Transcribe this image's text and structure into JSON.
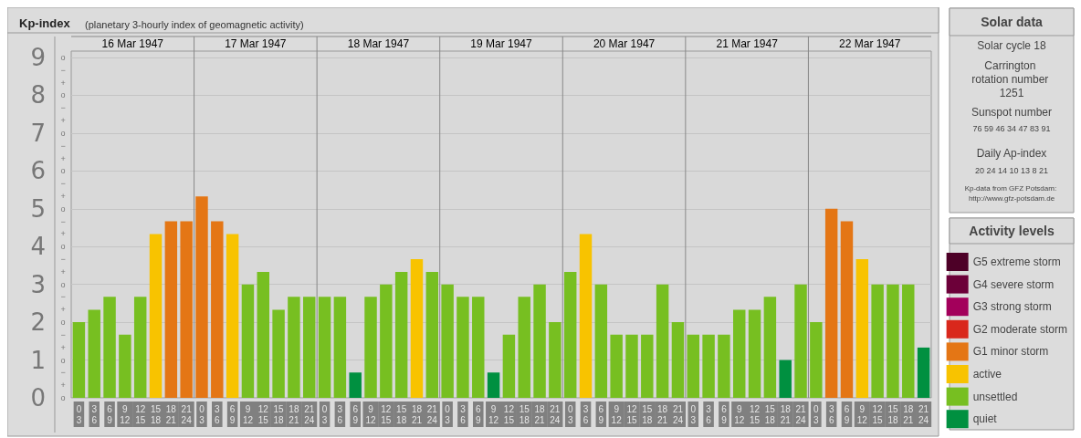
{
  "chart_data": {
    "type": "bar",
    "title": "Kp-index",
    "subtitle": "(planetary 3-hourly index of geomagnetic activity)",
    "categories": [
      "0\n3",
      "3\n6",
      "6\n9",
      "9\n12",
      "12\n15",
      "15\n18",
      "18\n21",
      "21\n24",
      "0\n3",
      "3\n6",
      "6\n9",
      "9\n12",
      "12\n15",
      "15\n18",
      "18\n21",
      "21\n24",
      "0\n3",
      "3\n6",
      "6\n9",
      "9\n12",
      "12\n15",
      "15\n18",
      "18\n21",
      "21\n24",
      "0\n3",
      "3\n6",
      "6\n9",
      "9\n12",
      "12\n15",
      "15\n18",
      "18\n21",
      "21\n24",
      "0\n3",
      "3\n6",
      "6\n9",
      "9\n12",
      "12\n15",
      "15\n18",
      "18\n21",
      "21\n24",
      "0\n3",
      "3\n6",
      "6\n9",
      "9\n12",
      "12\n15",
      "15\n18",
      "18\n21",
      "21\n24",
      "0\n3",
      "3\n6",
      "6\n9",
      "9\n12",
      "12\n15",
      "15\n18",
      "18\n21",
      "21\n24"
    ],
    "stacked": true,
    "legend": "right",
    "legend_title": "Activity levels",
    "series": [
      {
        "name": "G5 extreme storm",
        "color": "#4d0027",
        "values": [
          null,
          null,
          null,
          null,
          null,
          null,
          null,
          null,
          null,
          null,
          null,
          null,
          null,
          null,
          null,
          null,
          null,
          null,
          null,
          null,
          null,
          null,
          null,
          null,
          null,
          null,
          null,
          null,
          null,
          null,
          null,
          null,
          null,
          null,
          null,
          null,
          null,
          null,
          null,
          null,
          null,
          null,
          null,
          null,
          null,
          null,
          null,
          null,
          null,
          null,
          null,
          null,
          null,
          null,
          null,
          null
        ]
      },
      {
        "name": "G4 severe storm",
        "color": "#6c0039",
        "values": [
          null,
          null,
          null,
          null,
          null,
          null,
          null,
          null,
          null,
          null,
          null,
          null,
          null,
          null,
          null,
          null,
          null,
          null,
          null,
          null,
          null,
          null,
          null,
          null,
          null,
          null,
          null,
          null,
          null,
          null,
          null,
          null,
          null,
          null,
          null,
          null,
          null,
          null,
          null,
          null,
          null,
          null,
          null,
          null,
          null,
          null,
          null,
          null,
          null,
          null,
          null,
          null,
          null,
          null,
          null,
          null
        ]
      },
      {
        "name": "G3 strong storm",
        "color": "#a3005b",
        "values": [
          null,
          null,
          null,
          null,
          null,
          null,
          null,
          null,
          null,
          null,
          null,
          null,
          null,
          null,
          null,
          null,
          null,
          null,
          null,
          null,
          null,
          null,
          null,
          null,
          null,
          null,
          null,
          null,
          null,
          null,
          null,
          null,
          null,
          null,
          null,
          null,
          null,
          null,
          null,
          null,
          null,
          null,
          null,
          null,
          null,
          null,
          null,
          null,
          null,
          null,
          null,
          null,
          null,
          null,
          null,
          null
        ]
      },
      {
        "name": "G2 moderate storm",
        "color": "#d9281c",
        "values": [
          null,
          null,
          null,
          null,
          null,
          null,
          null,
          null,
          null,
          null,
          null,
          null,
          null,
          null,
          null,
          null,
          null,
          null,
          null,
          null,
          null,
          null,
          null,
          null,
          null,
          null,
          null,
          null,
          null,
          null,
          null,
          null,
          null,
          null,
          null,
          null,
          null,
          null,
          null,
          null,
          null,
          null,
          null,
          null,
          null,
          null,
          null,
          null,
          null,
          null,
          null,
          null,
          null,
          null,
          null,
          null
        ]
      },
      {
        "name": "G1 minor storm",
        "color": "#e47615",
        "values": [
          null,
          null,
          null,
          null,
          null,
          null,
          4.67,
          4.67,
          5.33,
          4.67,
          null,
          null,
          null,
          null,
          null,
          null,
          null,
          null,
          null,
          null,
          null,
          null,
          null,
          null,
          null,
          null,
          null,
          null,
          null,
          null,
          null,
          null,
          null,
          null,
          null,
          null,
          null,
          null,
          null,
          null,
          null,
          null,
          null,
          null,
          null,
          null,
          null,
          null,
          null,
          5,
          4.67,
          null,
          null,
          null,
          null,
          null
        ]
      },
      {
        "name": "active",
        "color": "#f8c300",
        "values": [
          null,
          null,
          null,
          null,
          null,
          4.33,
          null,
          null,
          null,
          null,
          4.33,
          null,
          null,
          null,
          null,
          null,
          null,
          null,
          null,
          null,
          null,
          null,
          3.67,
          null,
          null,
          null,
          null,
          null,
          null,
          null,
          null,
          null,
          null,
          4.33,
          null,
          null,
          null,
          null,
          null,
          null,
          null,
          null,
          null,
          null,
          null,
          null,
          null,
          null,
          null,
          null,
          null,
          3.67,
          null,
          null,
          null,
          null
        ]
      },
      {
        "name": "unsettled",
        "color": "#77bf21",
        "values": [
          2,
          2.33,
          2.67,
          1.67,
          2.67,
          null,
          null,
          null,
          null,
          null,
          null,
          3,
          3.33,
          2.33,
          2.67,
          2.67,
          2.67,
          2.67,
          null,
          2.67,
          3,
          3.33,
          null,
          3.33,
          3,
          2.67,
          2.67,
          null,
          1.67,
          2.67,
          3,
          2,
          3.33,
          null,
          3,
          1.67,
          1.67,
          1.67,
          3,
          2,
          1.67,
          1.67,
          1.67,
          2.33,
          2.33,
          2.67,
          null,
          3,
          2,
          null,
          null,
          null,
          3,
          3,
          3,
          null
        ]
      },
      {
        "name": "quiet",
        "color": "#009040",
        "values": [
          null,
          null,
          null,
          null,
          null,
          null,
          null,
          null,
          null,
          null,
          null,
          null,
          null,
          null,
          null,
          null,
          null,
          null,
          0.67,
          null,
          null,
          null,
          null,
          null,
          null,
          null,
          null,
          0.67,
          null,
          null,
          null,
          null,
          null,
          null,
          null,
          null,
          null,
          null,
          null,
          null,
          null,
          null,
          null,
          null,
          null,
          null,
          1,
          null,
          null,
          null,
          null,
          null,
          null,
          null,
          null,
          1.33
        ]
      }
    ],
    "ylim": [
      0,
      9.17
    ],
    "yticks": [
      0,
      1,
      2,
      3,
      4,
      5,
      6,
      7,
      8,
      9
    ],
    "grid": "y",
    "annotations": [
      "16 Mar 1947",
      "17 Mar 1947",
      "18 Mar 1947",
      "19 Mar 1947",
      "20 Mar 1947",
      "21 Mar 1947",
      "22 Mar 1947",
      "o",
      "+",
      "−",
      "o",
      "+",
      "−",
      "o",
      "+",
      "−",
      "o",
      "+",
      "−",
      "o",
      "+",
      "−",
      "o",
      "+",
      "−",
      "o",
      "+",
      "−",
      "o",
      "+",
      "−",
      "o",
      "+",
      "−",
      "o",
      "Solar data",
      "Solar cycle 18",
      "Carrington rotation number 1251",
      "Sunspot number",
      "76 59 46 34 47 83 91",
      "Daily Ap-index",
      "20 24 14 10 13 8 21",
      "Kp-data from GFZ Potsdam: http://www.gfz-potsdam.de"
    ]
  }
}
